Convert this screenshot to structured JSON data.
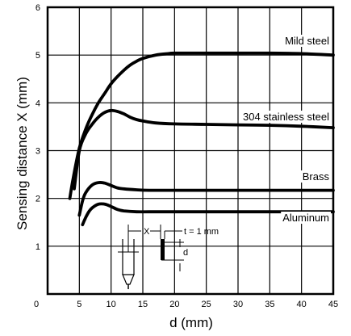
{
  "chart_data": {
    "type": "line",
    "xlabel": "d (mm)",
    "ylabel": "Sensing distance X (mm)",
    "xlim": [
      0,
      45
    ],
    "ylim": [
      0,
      6
    ],
    "x_ticks": [
      "0",
      "5",
      "10",
      "15",
      "20",
      "25",
      "30",
      "35",
      "40",
      "45"
    ],
    "y_ticks": [
      "1",
      "2",
      "3",
      "4",
      "5",
      "6"
    ],
    "grid": true,
    "series": [
      {
        "name": "Mild steel",
        "x": [
          3.5,
          4,
          5,
          6,
          7,
          8,
          9,
          10,
          11,
          12,
          13,
          14,
          15,
          17,
          19,
          20,
          25,
          30,
          35,
          40,
          45
        ],
        "y": [
          2.0,
          2.4,
          3.05,
          3.45,
          3.75,
          4.0,
          4.2,
          4.4,
          4.55,
          4.68,
          4.79,
          4.87,
          4.93,
          5.0,
          5.03,
          5.04,
          5.04,
          5.04,
          5.04,
          5.03,
          5.0
        ]
      },
      {
        "name": "304 stainless steel",
        "x": [
          4.2,
          5,
          6,
          7,
          8,
          9,
          10,
          11,
          12,
          13,
          14,
          15,
          17,
          20,
          25,
          30,
          35,
          40,
          45
        ],
        "y": [
          2.2,
          3.0,
          3.35,
          3.55,
          3.7,
          3.8,
          3.84,
          3.82,
          3.77,
          3.7,
          3.65,
          3.62,
          3.58,
          3.56,
          3.55,
          3.54,
          3.53,
          3.51,
          3.48
        ]
      },
      {
        "name": "Brass",
        "x": [
          5,
          5.5,
          6,
          7,
          8,
          9,
          10,
          11,
          12,
          14,
          16,
          20,
          25,
          30,
          35,
          40,
          45
        ],
        "y": [
          1.65,
          1.95,
          2.12,
          2.28,
          2.33,
          2.32,
          2.27,
          2.22,
          2.2,
          2.18,
          2.17,
          2.17,
          2.17,
          2.17,
          2.17,
          2.17,
          2.17
        ]
      },
      {
        "name": "Aluminum",
        "x": [
          5.5,
          6,
          6.5,
          7,
          8,
          9,
          10,
          11,
          12,
          14,
          16,
          20,
          25,
          30,
          35,
          40,
          45
        ],
        "y": [
          1.45,
          1.6,
          1.72,
          1.8,
          1.88,
          1.88,
          1.83,
          1.77,
          1.74,
          1.72,
          1.72,
          1.72,
          1.72,
          1.72,
          1.72,
          1.72,
          1.72
        ]
      }
    ],
    "inset": {
      "x_label": "X",
      "t_label": "t = 1 mm",
      "d_label": "d"
    }
  }
}
